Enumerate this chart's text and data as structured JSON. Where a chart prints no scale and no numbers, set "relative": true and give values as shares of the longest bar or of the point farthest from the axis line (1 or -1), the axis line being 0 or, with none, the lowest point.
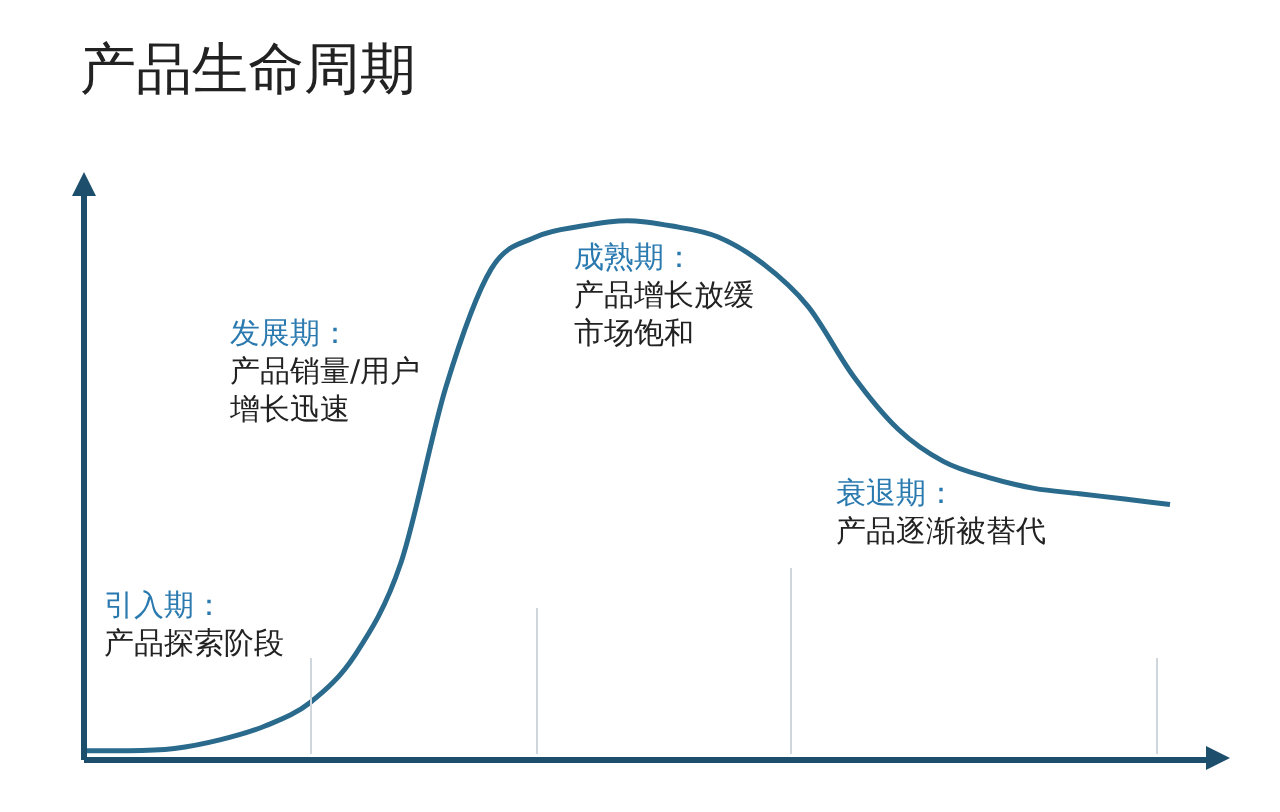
{
  "chart_data": {
    "type": "line",
    "title": "产品生命周期",
    "relative": true,
    "legend": false,
    "marker": "none",
    "line_style": "solid",
    "tick_labels": false,
    "categories": [
      null,
      null,
      null,
      null,
      null,
      null,
      null,
      null,
      null,
      null,
      null,
      null,
      null,
      null,
      null,
      null,
      null,
      null,
      null,
      null,
      null,
      null,
      null,
      null,
      null
    ],
    "series": [
      {
        "color": "#2a6a8c",
        "values": [
          0.01,
          0.01,
          0.014,
          0.03,
          0.056,
          0.1,
          0.19,
          0.36,
          0.69,
          0.91,
          0.97,
          0.99,
          1,
          0.99,
          0.97,
          0.92,
          0.84,
          0.71,
          0.61,
          0.55,
          0.52,
          0.5,
          0.49,
          0.48,
          0.47
        ]
      }
    ],
    "annotations": [
      "引入期：",
      "产品探索阶段",
      "发展期：",
      "产品销量/用户增长迅速",
      "成熟期：",
      "产品增长放缓市场饱和",
      "衰退期：",
      "产品逐渐被替代"
    ]
  }
}
